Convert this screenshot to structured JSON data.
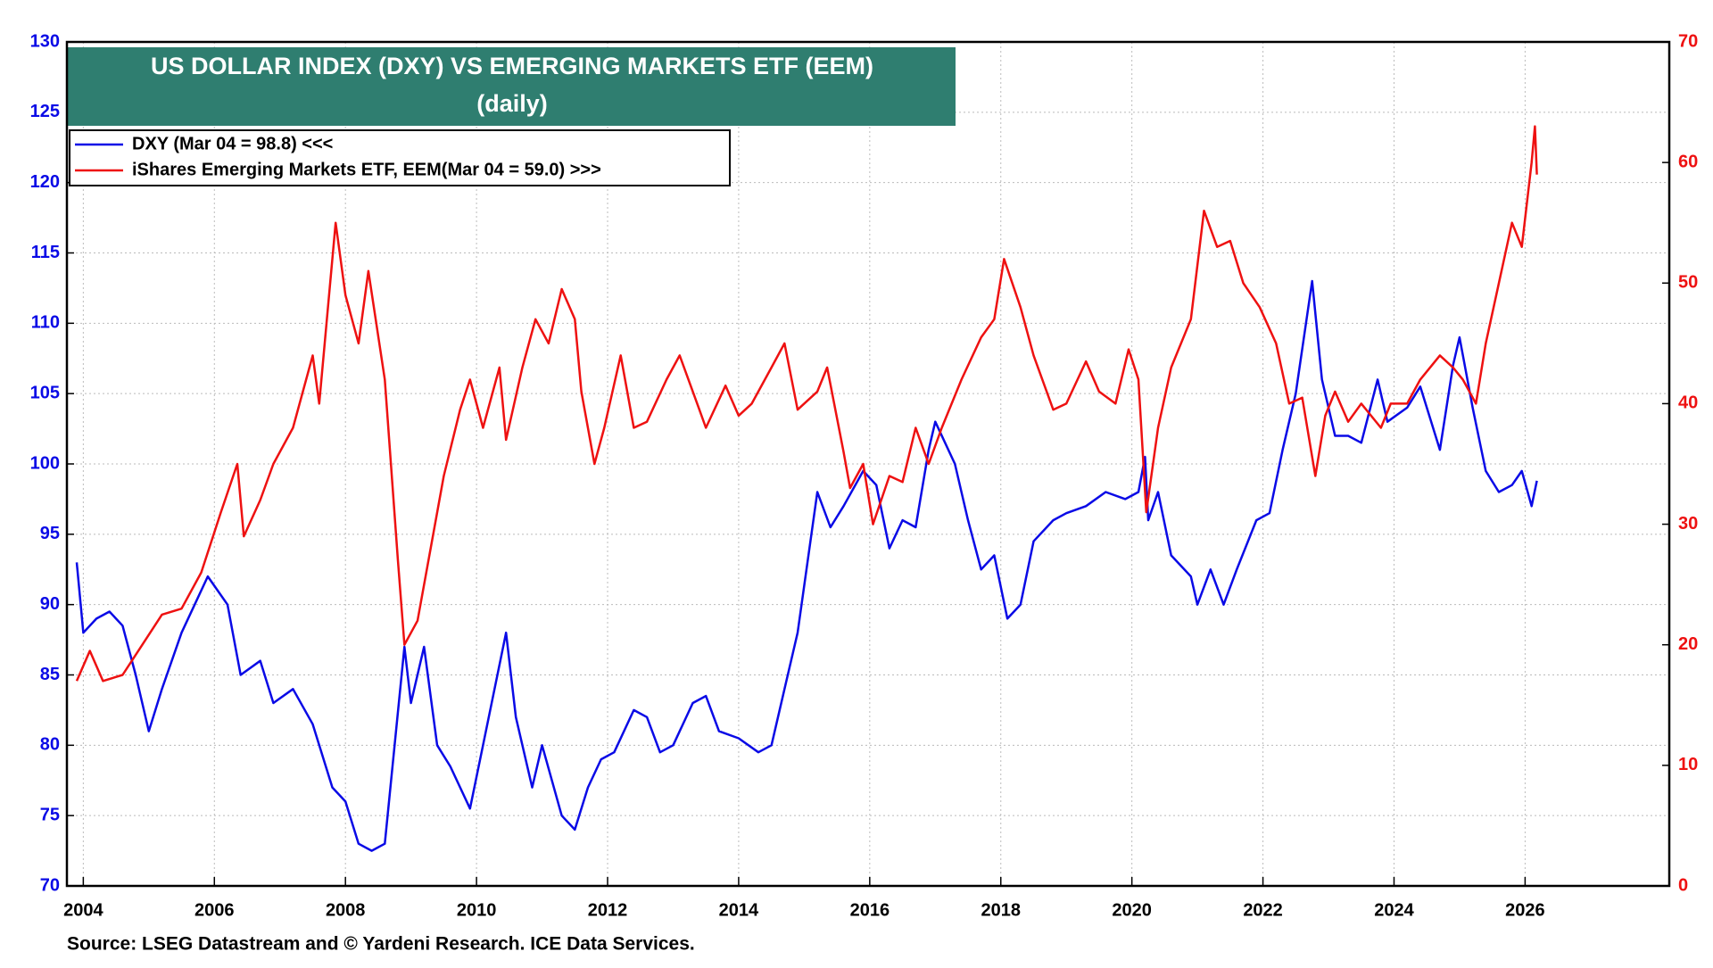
{
  "chart_data": {
    "type": "line",
    "title": "US DOLLAR INDEX (DXY) VS EMERGING MARKETS ETF (EEM)",
    "subtitle": "(daily)",
    "source": "Source: LSEG Datastream and © Yardeni Research. ICE Data Services.",
    "xlim": [
      2003.75,
      2028.2
    ],
    "xticks": [
      2004,
      2006,
      2008,
      2010,
      2012,
      2014,
      2016,
      2018,
      2020,
      2022,
      2024,
      2026
    ],
    "ylim": [
      70,
      130
    ],
    "yticks": [
      70,
      75,
      80,
      85,
      90,
      95,
      100,
      105,
      110,
      115,
      120,
      125,
      130
    ],
    "y2lim": [
      0,
      70
    ],
    "y2ticks": [
      0,
      10,
      20,
      30,
      40,
      50,
      60,
      70
    ],
    "grid": true,
    "series": [
      {
        "name": "DXY (Mar 04 = 98.8) <<<",
        "color": "#0a0ae6",
        "x": [
          2003.9,
          2004.0,
          2004.2,
          2004.4,
          2004.6,
          2004.8,
          2005.0,
          2005.2,
          2005.5,
          2005.9,
          2006.2,
          2006.4,
          2006.7,
          2006.9,
          2007.2,
          2007.5,
          2007.8,
          2008.0,
          2008.2,
          2008.4,
          2008.6,
          2008.75,
          2008.9,
          2009.0,
          2009.2,
          2009.4,
          2009.6,
          2009.9,
          2010.1,
          2010.45,
          2010.6,
          2010.85,
          2011.0,
          2011.3,
          2011.5,
          2011.7,
          2011.9,
          2012.1,
          2012.4,
          2012.6,
          2012.8,
          2013.0,
          2013.3,
          2013.5,
          2013.7,
          2014.0,
          2014.3,
          2014.5,
          2014.7,
          2014.9,
          2015.2,
          2015.4,
          2015.6,
          2015.9,
          2016.1,
          2016.3,
          2016.5,
          2016.7,
          2016.9,
          2017.0,
          2017.3,
          2017.5,
          2017.7,
          2017.9,
          2018.1,
          2018.3,
          2018.5,
          2018.8,
          2019.0,
          2019.3,
          2019.6,
          2019.9,
          2020.1,
          2020.2,
          2020.25,
          2020.4,
          2020.6,
          2020.9,
          2021.0,
          2021.2,
          2021.4,
          2021.6,
          2021.9,
          2022.1,
          2022.3,
          2022.5,
          2022.75,
          2022.9,
          2023.1,
          2023.3,
          2023.5,
          2023.75,
          2023.9,
          2024.2,
          2024.4,
          2024.7,
          2024.9,
          2025.0,
          2025.2,
          2025.4,
          2025.6,
          2025.8,
          2025.95,
          2026.1,
          2026.18
        ],
        "values": [
          93,
          88,
          89,
          89.5,
          88.5,
          85,
          81,
          84,
          88,
          92,
          90,
          85,
          86,
          83,
          84,
          81.5,
          77,
          76,
          73,
          72.5,
          73,
          80,
          87,
          83,
          87,
          80,
          78.5,
          75.5,
          80,
          88,
          82,
          77,
          80,
          75,
          74,
          77,
          79,
          79.5,
          82.5,
          82,
          79.5,
          80,
          83,
          83.5,
          81,
          80.5,
          79.5,
          80,
          84,
          88,
          98,
          95.5,
          97,
          99.5,
          98.5,
          94,
          96,
          95.5,
          101,
          103,
          100,
          96,
          92.5,
          93.5,
          89,
          90,
          94.5,
          96,
          96.5,
          97,
          98,
          97.5,
          98,
          100.5,
          96,
          98,
          93.5,
          92,
          90,
          92.5,
          90,
          92.5,
          96,
          96.5,
          101,
          105,
          113,
          106,
          102,
          102,
          101.5,
          106,
          103,
          104,
          105.5,
          101,
          107,
          109,
          104,
          99.5,
          98,
          98.5,
          99.5,
          97,
          98.8
        ]
      },
      {
        "name": "iShares Emerging Markets ETF, EEM(Mar 04 = 59.0) >>>",
        "color": "#ee1111",
        "axis": "y2",
        "x": [
          2003.9,
          2004.1,
          2004.3,
          2004.6,
          2004.9,
          2005.2,
          2005.5,
          2005.8,
          2006.1,
          2006.35,
          2006.45,
          2006.7,
          2006.9,
          2007.2,
          2007.5,
          2007.6,
          2007.85,
          2008.0,
          2008.2,
          2008.35,
          2008.6,
          2008.8,
          2008.9,
          2009.1,
          2009.3,
          2009.5,
          2009.75,
          2009.9,
          2010.1,
          2010.35,
          2010.45,
          2010.7,
          2010.9,
          2011.1,
          2011.3,
          2011.5,
          2011.6,
          2011.8,
          2011.95,
          2012.2,
          2012.4,
          2012.6,
          2012.9,
          2013.1,
          2013.4,
          2013.5,
          2013.8,
          2014.0,
          2014.2,
          2014.5,
          2014.7,
          2014.9,
          2015.2,
          2015.35,
          2015.6,
          2015.7,
          2015.9,
          2016.05,
          2016.3,
          2016.5,
          2016.7,
          2016.9,
          2017.1,
          2017.4,
          2017.7,
          2017.9,
          2018.05,
          2018.3,
          2018.5,
          2018.8,
          2019.0,
          2019.3,
          2019.5,
          2019.75,
          2019.95,
          2020.1,
          2020.22,
          2020.4,
          2020.6,
          2020.9,
          2021.1,
          2021.3,
          2021.5,
          2021.7,
          2021.95,
          2022.2,
          2022.4,
          2022.6,
          2022.8,
          2022.95,
          2023.1,
          2023.3,
          2023.5,
          2023.8,
          2023.95,
          2024.2,
          2024.4,
          2024.7,
          2024.9,
          2025.05,
          2025.25,
          2025.4,
          2025.6,
          2025.8,
          2025.95,
          2026.1,
          2026.15,
          2026.18
        ],
        "values": [
          17,
          19.5,
          17,
          17.5,
          20,
          22.5,
          23,
          26,
          31,
          35,
          29,
          32,
          35,
          38,
          44,
          40,
          55,
          49,
          45,
          51,
          42,
          27,
          20,
          22,
          28,
          34,
          39.5,
          42,
          38,
          43,
          37,
          43,
          47,
          45,
          49.5,
          47,
          41,
          35,
          38,
          44,
          38,
          38.5,
          42,
          44,
          39.5,
          38,
          41.5,
          39,
          40,
          43,
          45,
          39.5,
          41,
          43,
          36,
          33,
          35,
          30,
          34,
          33.5,
          38,
          35,
          38,
          42,
          45.5,
          47,
          52,
          48,
          44,
          39.5,
          40,
          43.5,
          41,
          40,
          44.5,
          42,
          31,
          38,
          43,
          47,
          56,
          53,
          53.5,
          50,
          48,
          45,
          40,
          40.5,
          34,
          39,
          41,
          38.5,
          40,
          38,
          40,
          40,
          42,
          44,
          43,
          42,
          40,
          45,
          50,
          55,
          53,
          60,
          63,
          59
        ]
      }
    ]
  }
}
